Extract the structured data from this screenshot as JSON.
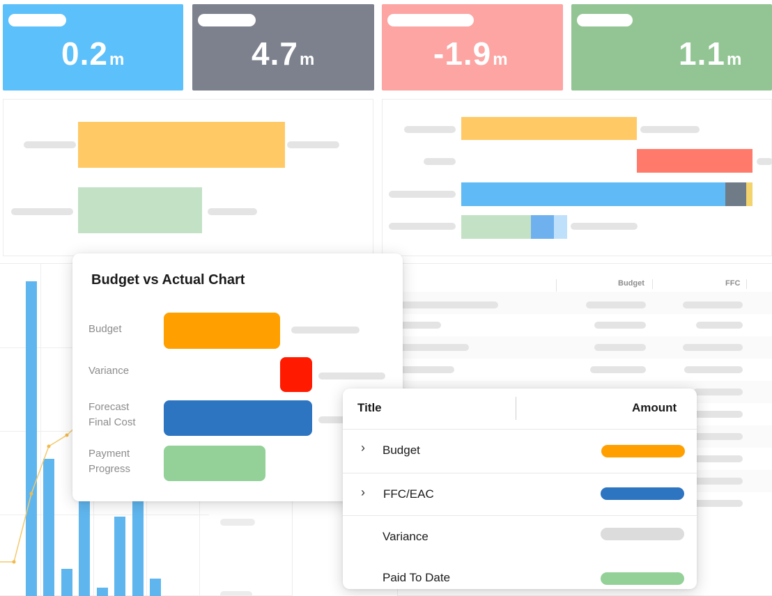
{
  "kpis": [
    {
      "value": "0.2",
      "unit": "m",
      "color": "#5cc0fb"
    },
    {
      "value": "4.7",
      "unit": "m",
      "color": "#7c818d"
    },
    {
      "value": "-1.9",
      "unit": "m",
      "color": "#fca5a2"
    },
    {
      "value": "1.1",
      "unit": "m",
      "color": "#93c594"
    }
  ],
  "background_table": {
    "headers": [
      "Budget",
      "FFC"
    ]
  },
  "budget_chart": {
    "title": "Budget vs Actual Chart",
    "rows": [
      {
        "label": "Budget",
        "color": "#ff9f00"
      },
      {
        "label": "Variance",
        "color": "#ff1a00"
      },
      {
        "label": "Forecast\nFinal Cost",
        "color": "#2d74c1"
      },
      {
        "label": "Payment\nProgress",
        "color": "#93d198"
      }
    ]
  },
  "summary_table": {
    "columns": [
      "Title",
      "Amount"
    ],
    "rows": [
      {
        "title": "Budget",
        "expandable": true,
        "color": "#ff9f00"
      },
      {
        "title": "FFC/EAC",
        "expandable": true,
        "color": "#2d74c1"
      },
      {
        "title": "Variance",
        "expandable": false,
        "color": "#dcdcdc"
      },
      {
        "title": "Paid To Date",
        "expandable": false,
        "color": "#93d198"
      }
    ]
  },
  "colors": {
    "orange_light": "#ffc966",
    "green_light": "#c3e2c5",
    "salmon": "#ff7a6b",
    "blue_light": "#5fbaf5",
    "slate": "#6f7b87",
    "yellow": "#f3d36b"
  }
}
